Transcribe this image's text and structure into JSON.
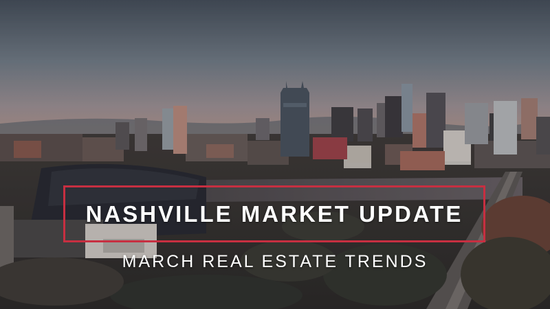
{
  "banner": {
    "title": "NASHVILLE MARKET UPDATE",
    "subtitle": "MARCH REAL ESTATE TRENDS"
  },
  "colors": {
    "accent": "#c72f41",
    "text": "#ffffff"
  }
}
